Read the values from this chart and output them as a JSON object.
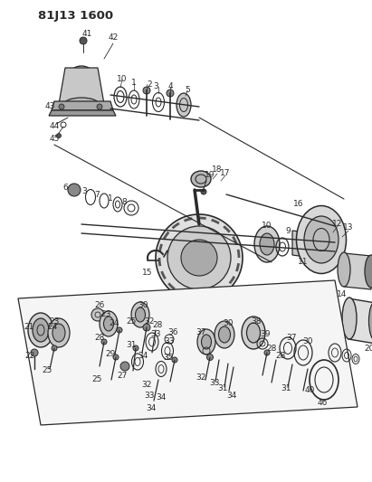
{
  "title": "81J13 1600",
  "bg_color": "#ffffff",
  "line_color": "#2a2a2a",
  "title_fontsize": 10,
  "label_fontsize": 6.5,
  "fig_width": 4.11,
  "fig_height": 5.33,
  "dpi": 100
}
